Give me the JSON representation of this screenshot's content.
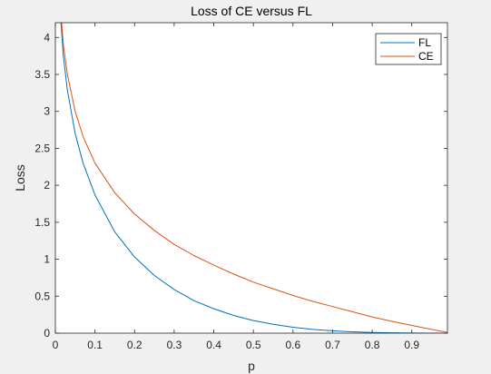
{
  "chart_data": {
    "type": "line",
    "title": "Loss of CE versus FL",
    "xlabel": "p",
    "ylabel": "Loss",
    "xlim": [
      0,
      0.99
    ],
    "ylim": [
      0,
      4.2
    ],
    "xticks": [
      0,
      0.1,
      0.2,
      0.3,
      0.4,
      0.5,
      0.6,
      0.7,
      0.8,
      0.9
    ],
    "xtick_labels": [
      "0",
      "0.1",
      "0.2",
      "0.3",
      "0.4",
      "0.5",
      "0.6",
      "0.7",
      "0.8",
      "0.9"
    ],
    "yticks": [
      0,
      0.5,
      1,
      1.5,
      2,
      2.5,
      3,
      3.5,
      4
    ],
    "ytick_labels": [
      "0",
      "0.5",
      "1",
      "1.5",
      "2",
      "2.5",
      "3",
      "3.5",
      "4"
    ],
    "legend_position": "top-right",
    "grid": false,
    "x": [
      0.01,
      0.02,
      0.03,
      0.05,
      0.07,
      0.1,
      0.15,
      0.2,
      0.25,
      0.3,
      0.35,
      0.4,
      0.45,
      0.5,
      0.55,
      0.6,
      0.65,
      0.7,
      0.75,
      0.8,
      0.85,
      0.9,
      0.95,
      0.99
    ],
    "series": [
      {
        "name": "FL",
        "color": "#0072BD",
        "values": [
          4.51,
          3.76,
          3.3,
          2.7,
          2.3,
          1.87,
          1.37,
          1.03,
          0.78,
          0.59,
          0.44,
          0.33,
          0.24,
          0.17,
          0.12,
          0.08,
          0.05,
          0.032,
          0.018,
          0.009,
          0.004,
          0.001,
          0.0001,
          0.0
        ]
      },
      {
        "name": "CE",
        "color": "#D95319",
        "values": [
          4.61,
          3.91,
          3.51,
          3.0,
          2.66,
          2.3,
          1.9,
          1.61,
          1.39,
          1.2,
          1.05,
          0.92,
          0.8,
          0.69,
          0.6,
          0.51,
          0.43,
          0.36,
          0.29,
          0.22,
          0.16,
          0.105,
          0.051,
          0.01
        ]
      }
    ]
  }
}
